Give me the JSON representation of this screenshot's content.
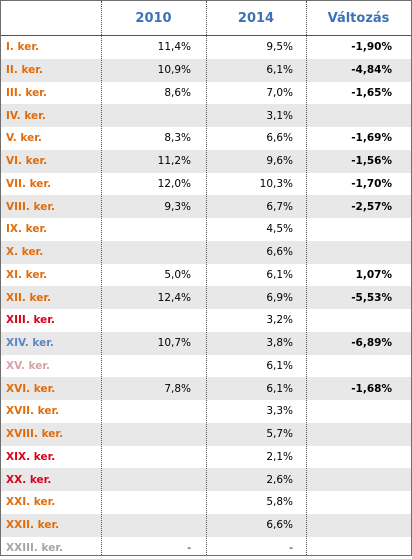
{
  "header": {
    "col_label": "",
    "col_2010": "2010",
    "col_2014": "2014",
    "col_change": "Változás"
  },
  "colors": {
    "header_text": "#3d72b8",
    "row_shade": "#e8e8e8"
  },
  "rows": [
    {
      "label": "I. ker.",
      "color": "#e26b0a",
      "v2010": "11,4%",
      "v2014": "9,5%",
      "change": "-1,90%"
    },
    {
      "label": "II. ker.",
      "color": "#e26b0a",
      "v2010": "10,9%",
      "v2014": "6,1%",
      "change": "-4,84%"
    },
    {
      "label": "III. ker.",
      "color": "#e26b0a",
      "v2010": "8,6%",
      "v2014": "7,0%",
      "change": "-1,65%"
    },
    {
      "label": "IV. ker.",
      "color": "#e26b0a",
      "v2010": "",
      "v2014": "3,1%",
      "change": ""
    },
    {
      "label": "V. ker.",
      "color": "#e26b0a",
      "v2010": "8,3%",
      "v2014": "6,6%",
      "change": "-1,69%"
    },
    {
      "label": "VI. ker.",
      "color": "#e26b0a",
      "v2010": "11,2%",
      "v2014": "9,6%",
      "change": "-1,56%"
    },
    {
      "label": "VII. ker.",
      "color": "#e26b0a",
      "v2010": "12,0%",
      "v2014": "10,3%",
      "change": "-1,70%"
    },
    {
      "label": "VIII. ker.",
      "color": "#e26b0a",
      "v2010": "9,3%",
      "v2014": "6,7%",
      "change": "-2,57%"
    },
    {
      "label": "IX. ker.",
      "color": "#e26b0a",
      "v2010": "",
      "v2014": "4,5%",
      "change": ""
    },
    {
      "label": "X. ker.",
      "color": "#e26b0a",
      "v2010": "",
      "v2014": "6,6%",
      "change": ""
    },
    {
      "label": "XI. ker.",
      "color": "#e26b0a",
      "v2010": "5,0%",
      "v2014": "6,1%",
      "change": "1,07%"
    },
    {
      "label": "XII. ker.",
      "color": "#e26b0a",
      "v2010": "12,4%",
      "v2014": "6,9%",
      "change": "-5,53%"
    },
    {
      "label": "XIII. ker.",
      "color": "#d9001b",
      "v2010": "",
      "v2014": "3,2%",
      "change": ""
    },
    {
      "label": "XIV. ker.",
      "color": "#5b86c4",
      "v2010": "10,7%",
      "v2014": "3,8%",
      "change": "-6,89%"
    },
    {
      "label": "XV. ker.",
      "color": "#d9a0a6",
      "v2010": "",
      "v2014": "6,1%",
      "change": ""
    },
    {
      "label": "XVI. ker.",
      "color": "#e26b0a",
      "v2010": "7,8%",
      "v2014": "6,1%",
      "change": "-1,68%"
    },
    {
      "label": "XVII. ker.",
      "color": "#e26b0a",
      "v2010": "",
      "v2014": "3,3%",
      "change": ""
    },
    {
      "label": "XVIII. ker.",
      "color": "#e26b0a",
      "v2010": "",
      "v2014": "5,7%",
      "change": ""
    },
    {
      "label": "XIX. ker.",
      "color": "#d9001b",
      "v2010": "",
      "v2014": "2,1%",
      "change": ""
    },
    {
      "label": "XX. ker.",
      "color": "#d9001b",
      "v2010": "",
      "v2014": "2,6%",
      "change": ""
    },
    {
      "label": "XXI. ker.",
      "color": "#e26b0a",
      "v2010": "",
      "v2014": "5,8%",
      "change": ""
    },
    {
      "label": "XXII. ker.",
      "color": "#e26b0a",
      "v2010": "",
      "v2014": "6,6%",
      "change": ""
    },
    {
      "label": "XXIII. ker.",
      "color": "#a6a6a6",
      "v2010": "-",
      "v2014": "-",
      "change": ""
    }
  ]
}
